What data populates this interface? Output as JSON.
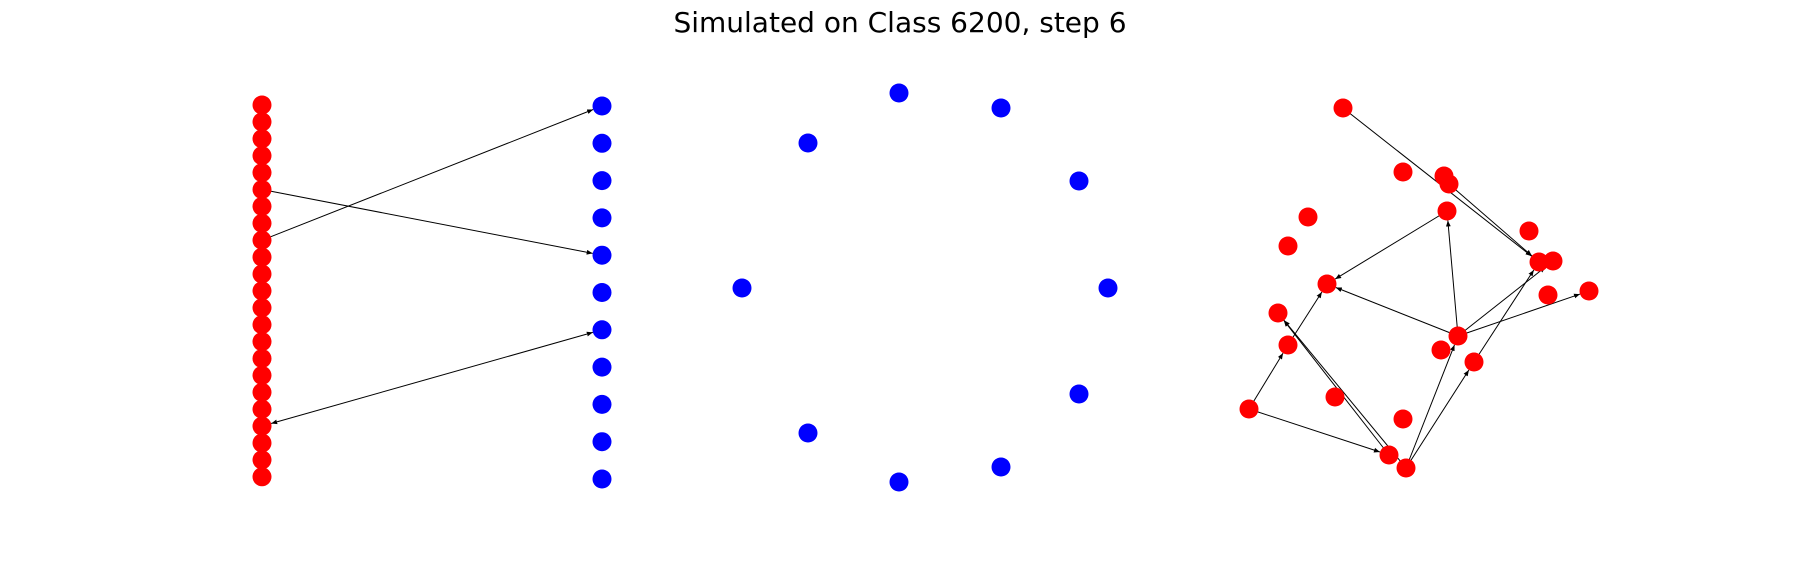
{
  "title": "Simulated on Class 6200, step 6",
  "colors": {
    "red": "#ff0000",
    "blue": "#0000ff",
    "edge": "#000000"
  }
}
